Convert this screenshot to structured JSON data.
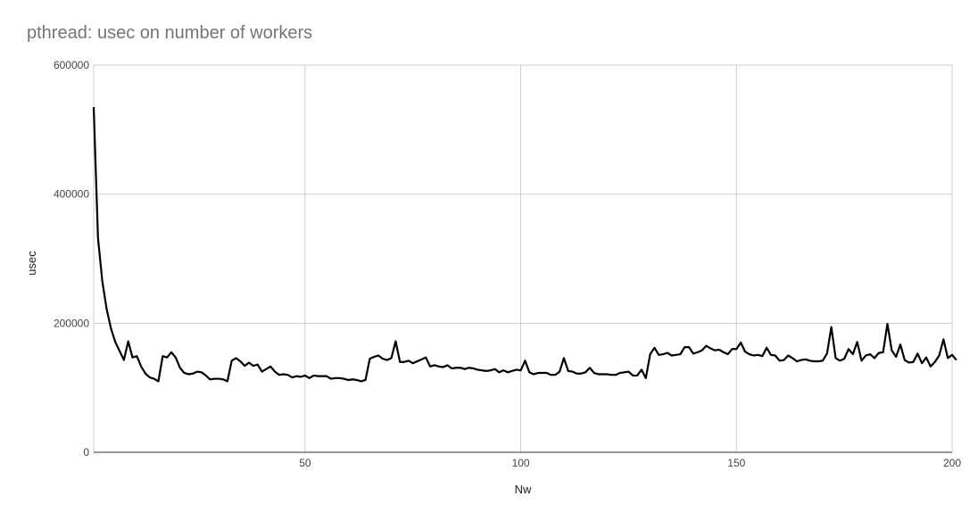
{
  "chart_data": {
    "type": "line",
    "title": "pthread: usec on number of workers",
    "xlabel": "Nw",
    "ylabel": "usec",
    "xlim": [
      1,
      200
    ],
    "ylim": [
      0,
      600000
    ],
    "x_ticks": [
      "50",
      "100",
      "150",
      "200"
    ],
    "y_ticks": [
      "0",
      "200000",
      "400000",
      "600000"
    ],
    "grid": true,
    "legend": "none",
    "line_color": "#000000",
    "series": [
      {
        "values": [
          535000,
          332000,
          265000,
          222000,
          192000,
          171000,
          157000,
          143000,
          172000,
          147000,
          149000,
          133000,
          122000,
          116000,
          114000,
          110000,
          149000,
          147000,
          155000,
          147000,
          131000,
          123000,
          121000,
          122000,
          125000,
          124000,
          119000,
          113000,
          114000,
          114000,
          113000,
          110000,
          142000,
          146000,
          141000,
          134000,
          139000,
          134000,
          136000,
          125000,
          129000,
          133000,
          125000,
          120000,
          121000,
          120000,
          116000,
          118000,
          117000,
          119000,
          115000,
          119000,
          118000,
          118000,
          118000,
          114000,
          115000,
          115000,
          114000,
          112000,
          113000,
          112000,
          110000,
          112000,
          145000,
          148000,
          150000,
          145000,
          143000,
          146000,
          172000,
          140000,
          140000,
          142000,
          138000,
          141000,
          144000,
          147000,
          133000,
          135000,
          133000,
          132000,
          135000,
          130000,
          131000,
          131000,
          129000,
          131000,
          130000,
          128000,
          127000,
          126000,
          127000,
          129000,
          124000,
          127000,
          124000,
          126000,
          128000,
          127000,
          142000,
          124000,
          121000,
          123000,
          123000,
          123000,
          120000,
          120000,
          125000,
          146000,
          126000,
          125000,
          122000,
          122000,
          124000,
          131000,
          123000,
          121000,
          121000,
          121000,
          120000,
          120000,
          123000,
          124000,
          125000,
          119000,
          119000,
          128000,
          115000,
          152000,
          162000,
          151000,
          152000,
          154000,
          150000,
          151000,
          152000,
          163000,
          163000,
          153000,
          155000,
          158000,
          165000,
          161000,
          158000,
          159000,
          155000,
          152000,
          160000,
          160000,
          170000,
          156000,
          152000,
          150000,
          151000,
          149000,
          162000,
          151000,
          150000,
          142000,
          143000,
          150000,
          146000,
          141000,
          143000,
          144000,
          142000,
          141000,
          141000,
          142000,
          153000,
          194000,
          146000,
          142000,
          145000,
          160000,
          152000,
          171000,
          142000,
          150000,
          152000,
          146000,
          154000,
          155000,
          199000,
          158000,
          148000,
          167000,
          143000,
          139000,
          140000,
          153000,
          138000,
          147000,
          133000,
          140000,
          150000,
          175000,
          146000,
          151000,
          143000
        ]
      }
    ]
  }
}
